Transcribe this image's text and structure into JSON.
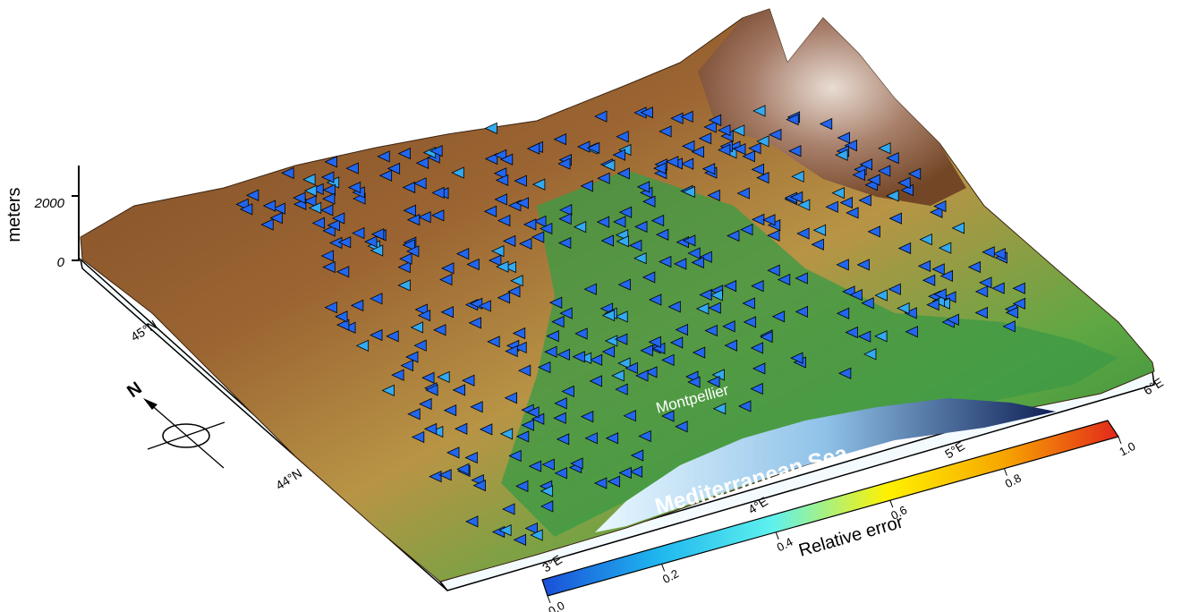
{
  "map": {
    "vertical_axis": {
      "unit_label": "meters",
      "ticks": [
        "2000",
        "0"
      ]
    },
    "latitude_labels": [
      "45°N",
      "44°N"
    ],
    "longitude_labels": [
      "3°E",
      "4°E",
      "5°E",
      "6°E"
    ],
    "place_labels": {
      "city": "Montpellier",
      "sea": "Mediterranean Sea"
    },
    "compass": {
      "north_letter": "N"
    },
    "colorbar": {
      "title": "Relative error",
      "tick_labels": [
        "0.0",
        "0.2",
        "0.4",
        "0.6",
        "0.8",
        "1.0"
      ],
      "stops": [
        "#1a4fd8",
        "#1fb6ef",
        "#5ef1ee",
        "#fff100",
        "#f7a600",
        "#e2281c"
      ]
    },
    "station_marker": {
      "icon": "triangle-left-icon",
      "fill": "#2266ee",
      "edge": "#000000"
    },
    "terrain_colors": {
      "lowland": "#2f8f3a",
      "plain": "#9fc45a",
      "hills": "#a86d35",
      "mountains": "#6b3d22",
      "peaks": "#e8ddd8",
      "sea_shallow": "#dff4ff",
      "sea_deep": "#122a6a"
    }
  }
}
